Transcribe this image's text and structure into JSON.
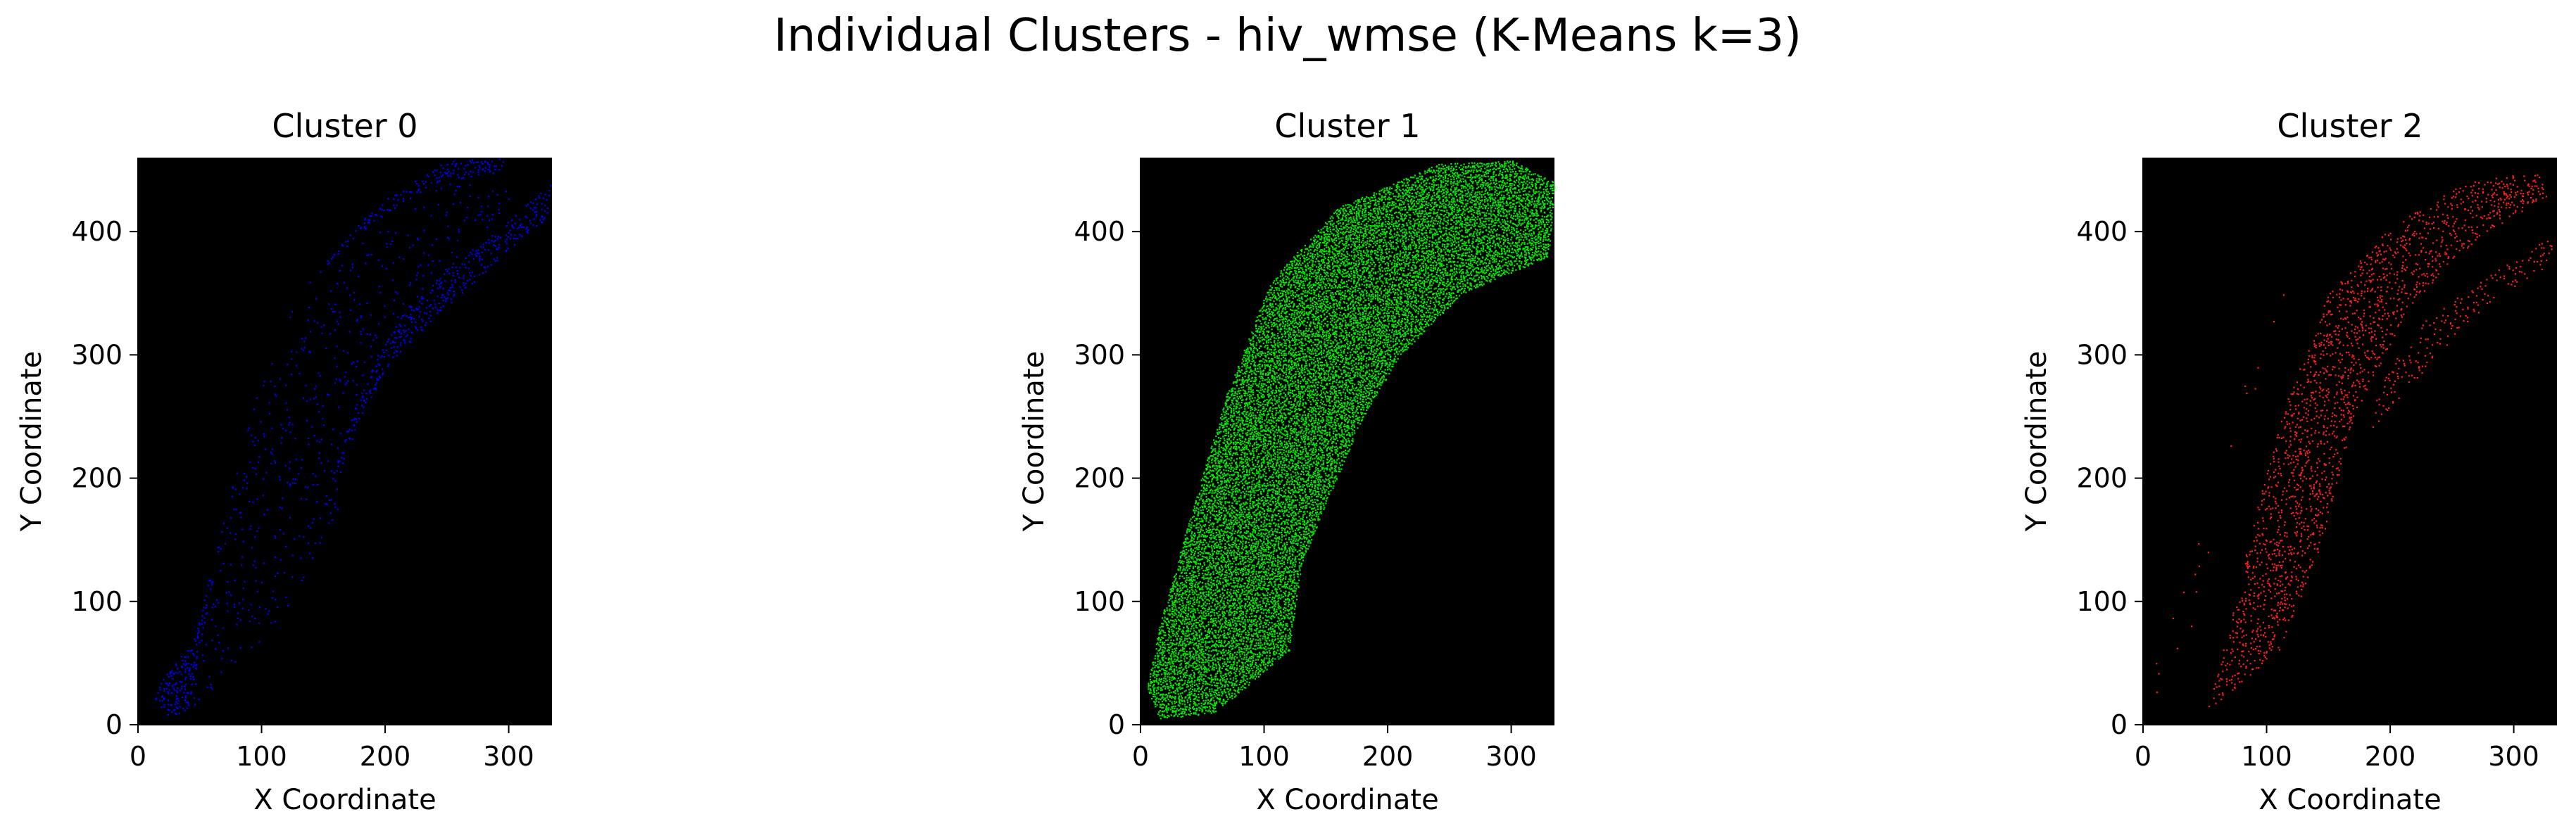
{
  "figure": {
    "title": "Individual Clusters - hiv_wmse (K-Means k=3)"
  },
  "chart_data": [
    {
      "type": "scatter",
      "title": "Cluster 0",
      "xlabel": "X Coordinate",
      "ylabel": "Y Coordinate",
      "xlim": [
        0,
        335
      ],
      "ylim": [
        0,
        460
      ],
      "xticks": [
        0,
        100,
        200,
        300
      ],
      "yticks": [
        0,
        100,
        200,
        300,
        400
      ],
      "background": "#000000",
      "grid": false,
      "series": [
        {
          "color": "#0000ff",
          "density": 0.55,
          "bands": [
            {
              "weight": 0.55,
              "polygon": [
                [
                  10,
                  25
                ],
                [
                  20,
                  8
                ],
                [
                  40,
                  10
                ],
                [
                  55,
                  90
                ],
                [
                  70,
                  170
                ],
                [
                  95,
                  260
                ],
                [
                  130,
                  350
                ],
                [
                  190,
                  420
                ],
                [
                  250,
                  458
                ],
                [
                  300,
                  460
                ],
                [
                  290,
                  448
                ],
                [
                  240,
                  440
                ],
                [
                  180,
                  400
                ],
                [
                  130,
                  350
                ],
                [
                  95,
                  265
                ],
                [
                  70,
                  170
                ],
                [
                  45,
                  70
                ]
              ]
            },
            {
              "weight": 0.45,
              "polygon": [
                [
                  150,
                  180
                ],
                [
                  170,
                  230
                ],
                [
                  205,
                  295
                ],
                [
                  250,
                  340
                ],
                [
                  300,
                  385
                ],
                [
                  330,
                  410
                ],
                [
                  335,
                  440
                ],
                [
                  300,
                  410
                ],
                [
                  255,
                  375
                ],
                [
                  210,
                  330
                ],
                [
                  180,
                  270
                ],
                [
                  160,
                  215
                ]
              ]
            },
            {
              "weight": 0.08,
              "polygon": [
                [
                  40,
                  10
                ],
                [
                  120,
                  90
                ],
                [
                  160,
                  170
                ],
                [
                  175,
                  240
                ],
                [
                  215,
                  320
                ],
                [
                  280,
                  395
                ],
                [
                  310,
                  440
                ],
                [
                  250,
                  440
                ],
                [
                  190,
                  400
                ],
                [
                  140,
                  350
                ],
                [
                  100,
                  265
                ],
                [
                  70,
                  170
                ],
                [
                  55,
                  90
                ]
              ]
            }
          ]
        }
      ]
    },
    {
      "type": "scatter",
      "title": "Cluster 1",
      "xlabel": "X Coordinate",
      "ylabel": "Y Coordinate",
      "xlim": [
        0,
        335
      ],
      "ylim": [
        0,
        460
      ],
      "xticks": [
        0,
        100,
        200,
        300
      ],
      "yticks": [
        0,
        100,
        200,
        300,
        400
      ],
      "background": "#000000",
      "grid": false,
      "series": [
        {
          "color": "#00ee00",
          "density": 0.8,
          "bands": [
            {
              "weight": 1.0,
              "polygon": [
                [
                  5,
                  30
                ],
                [
                  15,
                  5
                ],
                [
                  60,
                  10
                ],
                [
                  120,
                  60
                ],
                [
                  130,
                  130
                ],
                [
                  150,
                  180
                ],
                [
                  180,
                  250
                ],
                [
                  210,
                  300
                ],
                [
                  260,
                  350
                ],
                [
                  330,
                  380
                ],
                [
                  335,
                  440
                ],
                [
                  300,
                  458
                ],
                [
                  240,
                  455
                ],
                [
                  160,
                  420
                ],
                [
                  105,
                  360
                ],
                [
                  70,
                  270
                ],
                [
                  40,
                  170
                ],
                [
                  15,
                  80
                ]
              ]
            }
          ]
        }
      ]
    },
    {
      "type": "scatter",
      "title": "Cluster 2",
      "xlabel": "X Coordinate",
      "ylabel": "Y Coordinate",
      "xlim": [
        0,
        335
      ],
      "ylim": [
        0,
        460
      ],
      "xticks": [
        0,
        100,
        200,
        300
      ],
      "yticks": [
        0,
        100,
        200,
        300,
        400
      ],
      "background": "#000000",
      "grid": false,
      "series": [
        {
          "color": "#ff2020",
          "density": 0.35,
          "bands": [
            {
              "weight": 0.6,
              "polygon": [
                [
                  50,
                  10
                ],
                [
                  110,
                  60
                ],
                [
                  145,
                  150
                ],
                [
                  170,
                  250
                ],
                [
                  215,
                  340
                ],
                [
                  270,
                  395
                ],
                [
                  330,
                  430
                ],
                [
                  320,
                  450
                ],
                [
                  260,
                  440
                ],
                [
                  200,
                  405
                ],
                [
                  150,
                  350
                ],
                [
                  115,
                  260
                ],
                [
                  90,
                  170
                ],
                [
                  70,
                  80
                ]
              ]
            },
            {
              "weight": 0.35,
              "polygon": [
                [
                  180,
                  235
                ],
                [
                  220,
                  280
                ],
                [
                  265,
                  330
                ],
                [
                  330,
                  375
                ],
                [
                  335,
                  400
                ],
                [
                  280,
                  365
                ],
                [
                  230,
                  330
                ],
                [
                  195,
                  285
                ]
              ]
            },
            {
              "weight": 0.05,
              "polygon": [
                [
                  0,
                  20
                ],
                [
                  25,
                  10
                ],
                [
                  45,
                  90
                ],
                [
                  70,
                  200
                ],
                [
                  110,
                  340
                ],
                [
                  140,
                  380
                ],
                [
                  120,
                  370
                ],
                [
                  80,
                  270
                ],
                [
                  40,
                  140
                ],
                [
                  10,
                  50
                ]
              ]
            }
          ]
        }
      ]
    }
  ]
}
